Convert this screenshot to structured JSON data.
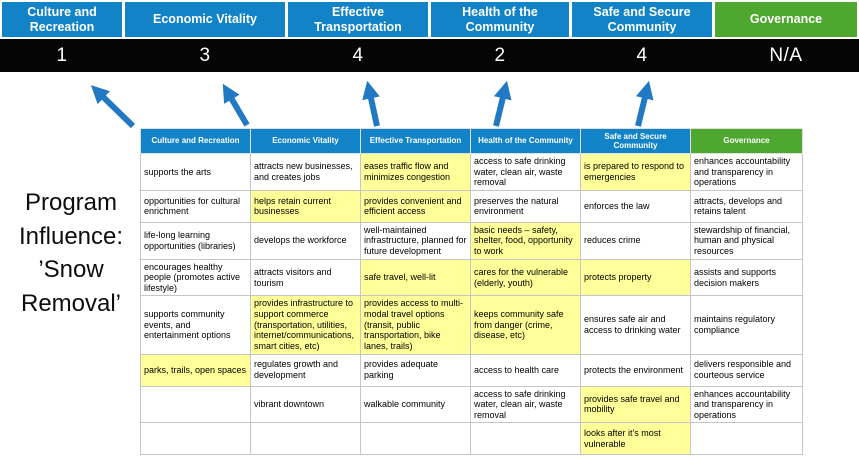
{
  "title": "Program Influence: ’Snow Removal’",
  "colors": {
    "pillar_blue": "#1283c6",
    "pillar_green": "#4ea72e",
    "score_bar_bg": "#050505",
    "highlight_yellow": "#ffff99",
    "arrow_blue": "#2079c2"
  },
  "pillars": [
    {
      "label": "Culture and Recreation",
      "score": "1",
      "theme": "blue"
    },
    {
      "label": "Economic Vitality",
      "score": "3",
      "theme": "blue"
    },
    {
      "label": "Effective Transportation",
      "score": "4",
      "theme": "blue"
    },
    {
      "label": "Health of the Community",
      "score": "2",
      "theme": "blue"
    },
    {
      "label": "Safe and Secure Community",
      "score": "4",
      "theme": "blue"
    },
    {
      "label": "Governance",
      "score": "N/A",
      "theme": "green"
    }
  ],
  "matrix": {
    "headers": [
      {
        "label": "Culture and Recreation",
        "theme": "blue"
      },
      {
        "label": "Economic Vitality",
        "theme": "blue"
      },
      {
        "label": "Effective Transportation",
        "theme": "blue"
      },
      {
        "label": "Health of the Community",
        "theme": "blue"
      },
      {
        "label": "Safe and Secure Community",
        "theme": "blue"
      },
      {
        "label": "Governance",
        "theme": "green"
      }
    ],
    "rows": [
      [
        {
          "text": "supports the arts",
          "highlight": false
        },
        {
          "text": "attracts new businesses, and creates jobs",
          "highlight": false
        },
        {
          "text": "eases traffic flow and minimizes congestion",
          "highlight": true
        },
        {
          "text": "access to safe drinking water, clean air, waste removal",
          "highlight": false
        },
        {
          "text": "is prepared to respond to emergencies",
          "highlight": true
        },
        {
          "text": "enhances accountability and transparency in operations",
          "highlight": false
        }
      ],
      [
        {
          "text": "opportunities for cultural enrichment",
          "highlight": false
        },
        {
          "text": "helps retain current businesses",
          "highlight": true
        },
        {
          "text": "provides convenient and efficient access",
          "highlight": true
        },
        {
          "text": "preserves the natural environment",
          "highlight": false
        },
        {
          "text": "enforces the law",
          "highlight": false
        },
        {
          "text": "attracts, develops and retains talent",
          "highlight": false
        }
      ],
      [
        {
          "text": "life-long learning opportunities (libraries)",
          "highlight": false
        },
        {
          "text": "develops the workforce",
          "highlight": false
        },
        {
          "text": "well-maintained infrastructure, planned for future development",
          "highlight": false
        },
        {
          "text": "basic needs – safety, shelter, food, opportunity to work",
          "highlight": true
        },
        {
          "text": "reduces crime",
          "highlight": false
        },
        {
          "text": "stewardship of financial, human and physical resources",
          "highlight": false
        }
      ],
      [
        {
          "text": "encourages healthy people (promotes active lifestyle)",
          "highlight": false
        },
        {
          "text": "attracts visitors and tourism",
          "highlight": false
        },
        {
          "text": "safe travel, well-lit",
          "highlight": true
        },
        {
          "text": "cares for the vulnerable (elderly, youth)",
          "highlight": true
        },
        {
          "text": "protects property",
          "highlight": true
        },
        {
          "text": "assists and supports decision makers",
          "highlight": false
        }
      ],
      [
        {
          "text": "supports community events, and entertainment options",
          "highlight": false
        },
        {
          "text": "provides infrastructure to support commerce (transportation, utilities, internet/communications, smart cities, etc)",
          "highlight": true
        },
        {
          "text": "provides access to multi-modal travel options (transit, public transportation, bike lanes, trails)",
          "highlight": true
        },
        {
          "text": "keeps community safe from danger (crime, disease, etc)",
          "highlight": true
        },
        {
          "text": "ensures safe air and access to drinking water",
          "highlight": false
        },
        {
          "text": "maintains regulatory compliance",
          "highlight": false
        }
      ],
      [
        {
          "text": "parks, trails, open spaces",
          "highlight": true
        },
        {
          "text": "regulates growth and development",
          "highlight": false
        },
        {
          "text": "provides adequate parking",
          "highlight": false
        },
        {
          "text": "access to health care",
          "highlight": false
        },
        {
          "text": "protects the environment",
          "highlight": false
        },
        {
          "text": "delivers responsible and courteous service",
          "highlight": false
        }
      ],
      [
        {
          "text": "",
          "highlight": false
        },
        {
          "text": "vibrant downtown",
          "highlight": false
        },
        {
          "text": "walkable community",
          "highlight": false
        },
        {
          "text": "access to safe drinking water, clean air, waste removal",
          "highlight": false
        },
        {
          "text": "provides safe travel and mobility",
          "highlight": true
        },
        {
          "text": "enhances accountability and transparency in operations",
          "highlight": false
        }
      ],
      [
        {
          "text": "",
          "highlight": false
        },
        {
          "text": "",
          "highlight": false
        },
        {
          "text": "",
          "highlight": false
        },
        {
          "text": "",
          "highlight": false
        },
        {
          "text": "looks after it's most vulnerable",
          "highlight": true
        },
        {
          "text": "",
          "highlight": false
        }
      ]
    ]
  }
}
